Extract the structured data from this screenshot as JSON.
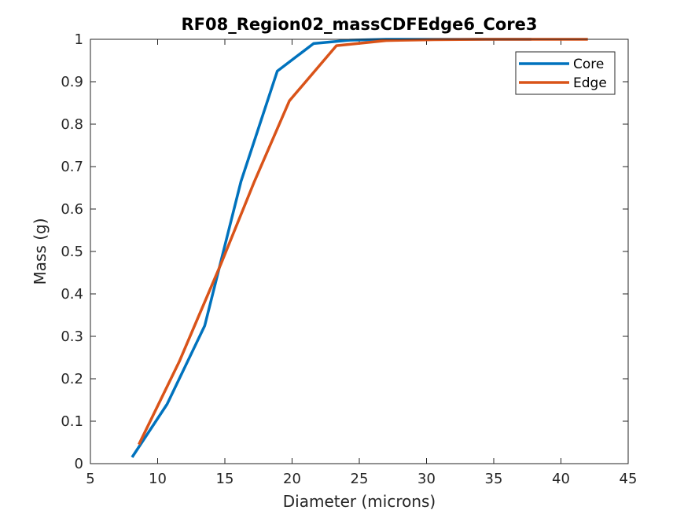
{
  "chart_data": {
    "type": "line",
    "title": "RF08_Region02_massCDFEdge6_Core3",
    "xlabel": "Diameter (microns)",
    "ylabel": "Mass (g)",
    "xlim": [
      5,
      45
    ],
    "ylim": [
      0,
      1
    ],
    "xticks": [
      5,
      10,
      15,
      20,
      25,
      30,
      35,
      40,
      45
    ],
    "yticks": [
      0,
      0.1,
      0.2,
      0.3,
      0.4,
      0.5,
      0.6,
      0.7,
      0.8,
      0.9,
      1
    ],
    "xtick_labels": [
      "5",
      "10",
      "15",
      "20",
      "25",
      "30",
      "35",
      "40",
      "45"
    ],
    "ytick_labels": [
      "0",
      "0.1",
      "0.2",
      "0.3",
      "0.4",
      "0.5",
      "0.6",
      "0.7",
      "0.8",
      "0.9",
      "1"
    ],
    "grid": false,
    "legend_position": "top-right",
    "series": [
      {
        "name": "Core",
        "color": "#0072BD",
        "x": [
          8.1,
          10.7,
          13.5,
          16.2,
          18.9,
          21.6,
          24.3,
          27.0,
          29.7,
          32.4,
          35.1,
          37.8
        ],
        "y": [
          0.015,
          0.14,
          0.325,
          0.665,
          0.925,
          0.99,
          0.998,
          1.0,
          1.0,
          1.0,
          1.0,
          1.0
        ]
      },
      {
        "name": "Edge",
        "color": "#D95319",
        "x": [
          8.6,
          11.6,
          14.7,
          17.2,
          19.8,
          23.3,
          27.0,
          30.6,
          34.4,
          38.1,
          42.0
        ],
        "y": [
          0.045,
          0.24,
          0.47,
          0.665,
          0.855,
          0.985,
          0.997,
          0.999,
          1.0,
          1.0,
          1.0
        ]
      }
    ]
  }
}
